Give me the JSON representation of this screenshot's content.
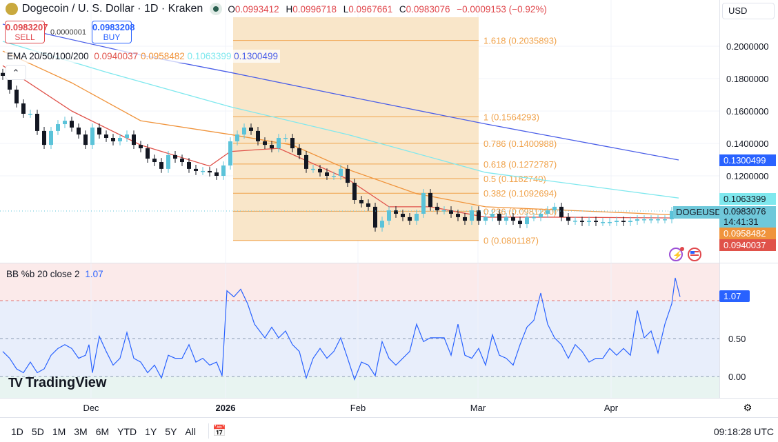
{
  "header": {
    "title": "Dogecoin / U. S. Dollar · 1D · Kraken",
    "ohlc": [
      {
        "k": "O",
        "v": "0.0993412"
      },
      {
        "k": "H",
        "v": "0.0996718"
      },
      {
        "k": "L",
        "v": "0.0967661"
      },
      {
        "k": "C",
        "v": "0.0983076"
      }
    ],
    "change": "−0.0009153 (−0.92%)"
  },
  "trade": {
    "sell_price": "0.0983207",
    "sell_label": "SELL",
    "spread": "0.0000001",
    "buy_price": "0.0983208",
    "buy_label": "BUY"
  },
  "ema_legend": {
    "label": "EMA 20/50/100/200",
    "v20": "0.0940037",
    "v50": "0.0958482",
    "v100": "0.1063399",
    "v200": "0.1300499"
  },
  "currency": "USD",
  "bb_legend": {
    "label": "BB %b 20 close 2",
    "value": "1.07"
  },
  "price_tags": {
    "ema100": "0.1063399",
    "symbol": "DOGEUSD",
    "last": "0.0983076",
    "countdown": "14:41:31",
    "ema50": "0.0958482",
    "ema20": "0.0940037",
    "ema200": "0.1300499"
  },
  "brand": "TradingView",
  "ranges": [
    "1D",
    "5D",
    "1M",
    "3M",
    "6M",
    "YTD",
    "1Y",
    "5Y",
    "All"
  ],
  "clock": "09:18:28 UTC",
  "colors": {
    "up": "#5bc3d9",
    "down": "#131722",
    "ema20": "#e0524a",
    "ema50": "#f0943c",
    "ema100": "#7fe8ee",
    "ema200": "#4a5ee8",
    "fib": "#f0a24a",
    "bb": "#2962ff"
  },
  "chart_data": {
    "type": "candlestick",
    "price_ticks": [
      "0.2000000",
      "0.1800000",
      "0.1600000",
      "0.1400000",
      "0.1200000"
    ],
    "price_tick_values": [
      0.2,
      0.18,
      0.16,
      0.14,
      0.12
    ],
    "x_ticks": [
      {
        "label": "Dec",
        "bar": 12.8
      },
      {
        "label": "2026",
        "bar": 32.3,
        "bold": true
      },
      {
        "label": "Feb",
        "bar": 51.5
      },
      {
        "label": "Mar",
        "bar": 68.9
      },
      {
        "label": "Apr",
        "bar": 88.2
      }
    ],
    "closes": [
      0.1817,
      0.1732,
      0.1647,
      0.1583,
      0.1583,
      0.1477,
      0.1391,
      0.1477,
      0.1519,
      0.154,
      0.1498,
      0.1455,
      0.1391,
      0.1498,
      0.1455,
      0.1434,
      0.1413,
      0.1434,
      0.1455,
      0.1391,
      0.137,
      0.1306,
      0.1285,
      0.1243,
      0.1328,
      0.1306,
      0.1285,
      0.1243,
      0.123,
      0.123,
      0.1221,
      0.12,
      0.1264,
      0.1413,
      0.1455,
      0.1498,
      0.1477,
      0.1413,
      0.1391,
      0.137,
      0.1434,
      0.1434,
      0.137,
      0.1328,
      0.1243,
      0.1243,
      0.1221,
      0.12,
      0.12,
      0.1243,
      0.1157,
      0.1051,
      0.103,
      0.1009,
      0.0881,
      0.0923,
      0.0987,
      0.0966,
      0.0945,
      0.0923,
      0.0966,
      0.1094,
      0.1009,
      0.0987,
      0.0987,
      0.0966,
      0.0945,
      0.0923,
      0.0987,
      0.0923,
      0.0945,
      0.0966,
      0.0923,
      0.0945,
      0.0923,
      0.0902,
      0.0945,
      0.0945,
      0.0966,
      0.0987,
      0.1009,
      0.0945,
      0.0923,
      0.0923,
      0.0915,
      0.0923,
      0.0915,
      0.0915,
      0.0915,
      0.0923,
      0.0915,
      0.0923,
      0.0932,
      0.0932,
      0.0932,
      0.0932,
      0.0932,
      0.0983
    ],
    "ema": [
      {
        "name": "EMA 200",
        "color": "ema200",
        "points": [
          [
            0,
            0.2136
          ],
          [
            20,
            0.1945
          ],
          [
            33,
            0.1838
          ],
          [
            50,
            0.169
          ],
          [
            70,
            0.152
          ],
          [
            98,
            0.1298
          ]
        ]
      },
      {
        "name": "EMA 100",
        "color": "ema100",
        "points": [
          [
            0,
            0.203
          ],
          [
            15,
            0.184
          ],
          [
            33,
            0.1626
          ],
          [
            50,
            0.1455
          ],
          [
            70,
            0.1221
          ],
          [
            98,
            0.1063
          ]
        ]
      },
      {
        "name": "EMA 50",
        "color": "ema50",
        "points": [
          [
            0,
            0.197
          ],
          [
            10,
            0.1774
          ],
          [
            20,
            0.154
          ],
          [
            33,
            0.1455
          ],
          [
            42,
            0.139
          ],
          [
            50,
            0.124
          ],
          [
            60,
            0.109
          ],
          [
            70,
            0.1009
          ],
          [
            98,
            0.0958
          ]
        ]
      },
      {
        "name": "EMA 20",
        "color": "ema20",
        "points": [
          [
            0,
            0.188
          ],
          [
            10,
            0.16
          ],
          [
            20,
            0.139
          ],
          [
            30,
            0.126
          ],
          [
            33,
            0.135
          ],
          [
            40,
            0.137
          ],
          [
            50,
            0.118
          ],
          [
            56,
            0.1009
          ],
          [
            62,
            0.1009
          ],
          [
            70,
            0.0945
          ],
          [
            80,
            0.0945
          ],
          [
            98,
            0.094
          ]
        ]
      }
    ],
    "fibonacci": {
      "start_bar": 33.4,
      "end_bar": 69,
      "levels": [
        {
          "label": "1.618 (0.2035893)",
          "value": 0.2035893
        },
        {
          "label": "1 (0.1564293)",
          "value": 0.1564293
        },
        {
          "label": "0.786 (0.1400988)",
          "value": 0.1400988
        },
        {
          "label": "0.618 (0.1272787)",
          "value": 0.1272787
        },
        {
          "label": "0.5 (0.1182740)",
          "value": 0.118274
        },
        {
          "label": "0.382 (0.1092694)",
          "value": 0.1092694
        },
        {
          "label": "0.236 (0.0981280)",
          "value": 0.098128
        },
        {
          "label": "0 (0.0801187)",
          "value": 0.0801187
        }
      ]
    },
    "bb_pb": {
      "ticks": [
        "1.00",
        "0.50",
        "0.00"
      ],
      "tick_values": [
        1,
        0.5,
        0
      ],
      "points": [
        [
          0,
          0.33
        ],
        [
          1,
          0.24
        ],
        [
          2,
          0.1
        ],
        [
          3,
          0.05
        ],
        [
          4,
          0.19
        ],
        [
          5,
          0.05
        ],
        [
          6,
          0.1
        ],
        [
          7,
          0.28
        ],
        [
          8,
          0.37
        ],
        [
          9,
          0.42
        ],
        [
          10,
          0.37
        ],
        [
          11,
          0.24
        ],
        [
          12,
          0.28
        ],
        [
          12.5,
          0.42
        ],
        [
          13,
          0.05
        ],
        [
          14,
          0.53
        ],
        [
          15,
          0.33
        ],
        [
          16,
          0.15
        ],
        [
          17,
          0.24
        ],
        [
          18,
          0.58
        ],
        [
          19,
          0.24
        ],
        [
          20,
          0.19
        ],
        [
          21,
          0.05
        ],
        [
          22,
          0.15
        ],
        [
          23,
          -0.02
        ],
        [
          24,
          0.28
        ],
        [
          25,
          0.24
        ],
        [
          26,
          0.24
        ],
        [
          27,
          0.42
        ],
        [
          28,
          0.19
        ],
        [
          29,
          0.24
        ],
        [
          30,
          0.15
        ],
        [
          31,
          0.19
        ],
        [
          31.8,
          0.01
        ],
        [
          32.5,
          1.13
        ],
        [
          33.5,
          1.05
        ],
        [
          34.5,
          1.15
        ],
        [
          35.5,
          0.96
        ],
        [
          36.5,
          0.69
        ],
        [
          38,
          0.51
        ],
        [
          39,
          0.65
        ],
        [
          40,
          0.51
        ],
        [
          41,
          0.6
        ],
        [
          42,
          0.42
        ],
        [
          43,
          0.33
        ],
        [
          44,
          -0.02
        ],
        [
          45,
          0.24
        ],
        [
          46,
          0.37
        ],
        [
          47,
          0.24
        ],
        [
          48,
          0.33
        ],
        [
          49,
          0.51
        ],
        [
          50,
          0.24
        ],
        [
          51,
          -0.04
        ],
        [
          52,
          0.19
        ],
        [
          53,
          0.15
        ],
        [
          54,
          0.01
        ],
        [
          55,
          0.46
        ],
        [
          56,
          0.24
        ],
        [
          57,
          0.15
        ],
        [
          58,
          0.24
        ],
        [
          59,
          0.33
        ],
        [
          60,
          0.69
        ],
        [
          61,
          0.46
        ],
        [
          62,
          0.51
        ],
        [
          63,
          0.51
        ],
        [
          64,
          0.51
        ],
        [
          65,
          0.28
        ],
        [
          66,
          0.69
        ],
        [
          67,
          0.28
        ],
        [
          68,
          0.24
        ],
        [
          69,
          0.37
        ],
        [
          70,
          0.15
        ],
        [
          71,
          0.55
        ],
        [
          72,
          0.28
        ],
        [
          73,
          0.24
        ],
        [
          74,
          0.15
        ],
        [
          75,
          0.42
        ],
        [
          76,
          0.65
        ],
        [
          77,
          0.74
        ],
        [
          78,
          1.1
        ],
        [
          79,
          0.69
        ],
        [
          80,
          0.51
        ],
        [
          81,
          0.42
        ],
        [
          82,
          0.24
        ],
        [
          83,
          0.42
        ],
        [
          84,
          0.33
        ],
        [
          85,
          0.19
        ],
        [
          86,
          0.24
        ],
        [
          87,
          0.24
        ],
        [
          88,
          0.37
        ],
        [
          89,
          0.28
        ],
        [
          90,
          0.37
        ],
        [
          91,
          0.28
        ],
        [
          92,
          0.87
        ],
        [
          93,
          0.51
        ],
        [
          94,
          0.6
        ],
        [
          95,
          0.31
        ],
        [
          96,
          0.69
        ],
        [
          97,
          0.96
        ],
        [
          97.5,
          1.3
        ],
        [
          98.2,
          1.05
        ]
      ]
    }
  }
}
